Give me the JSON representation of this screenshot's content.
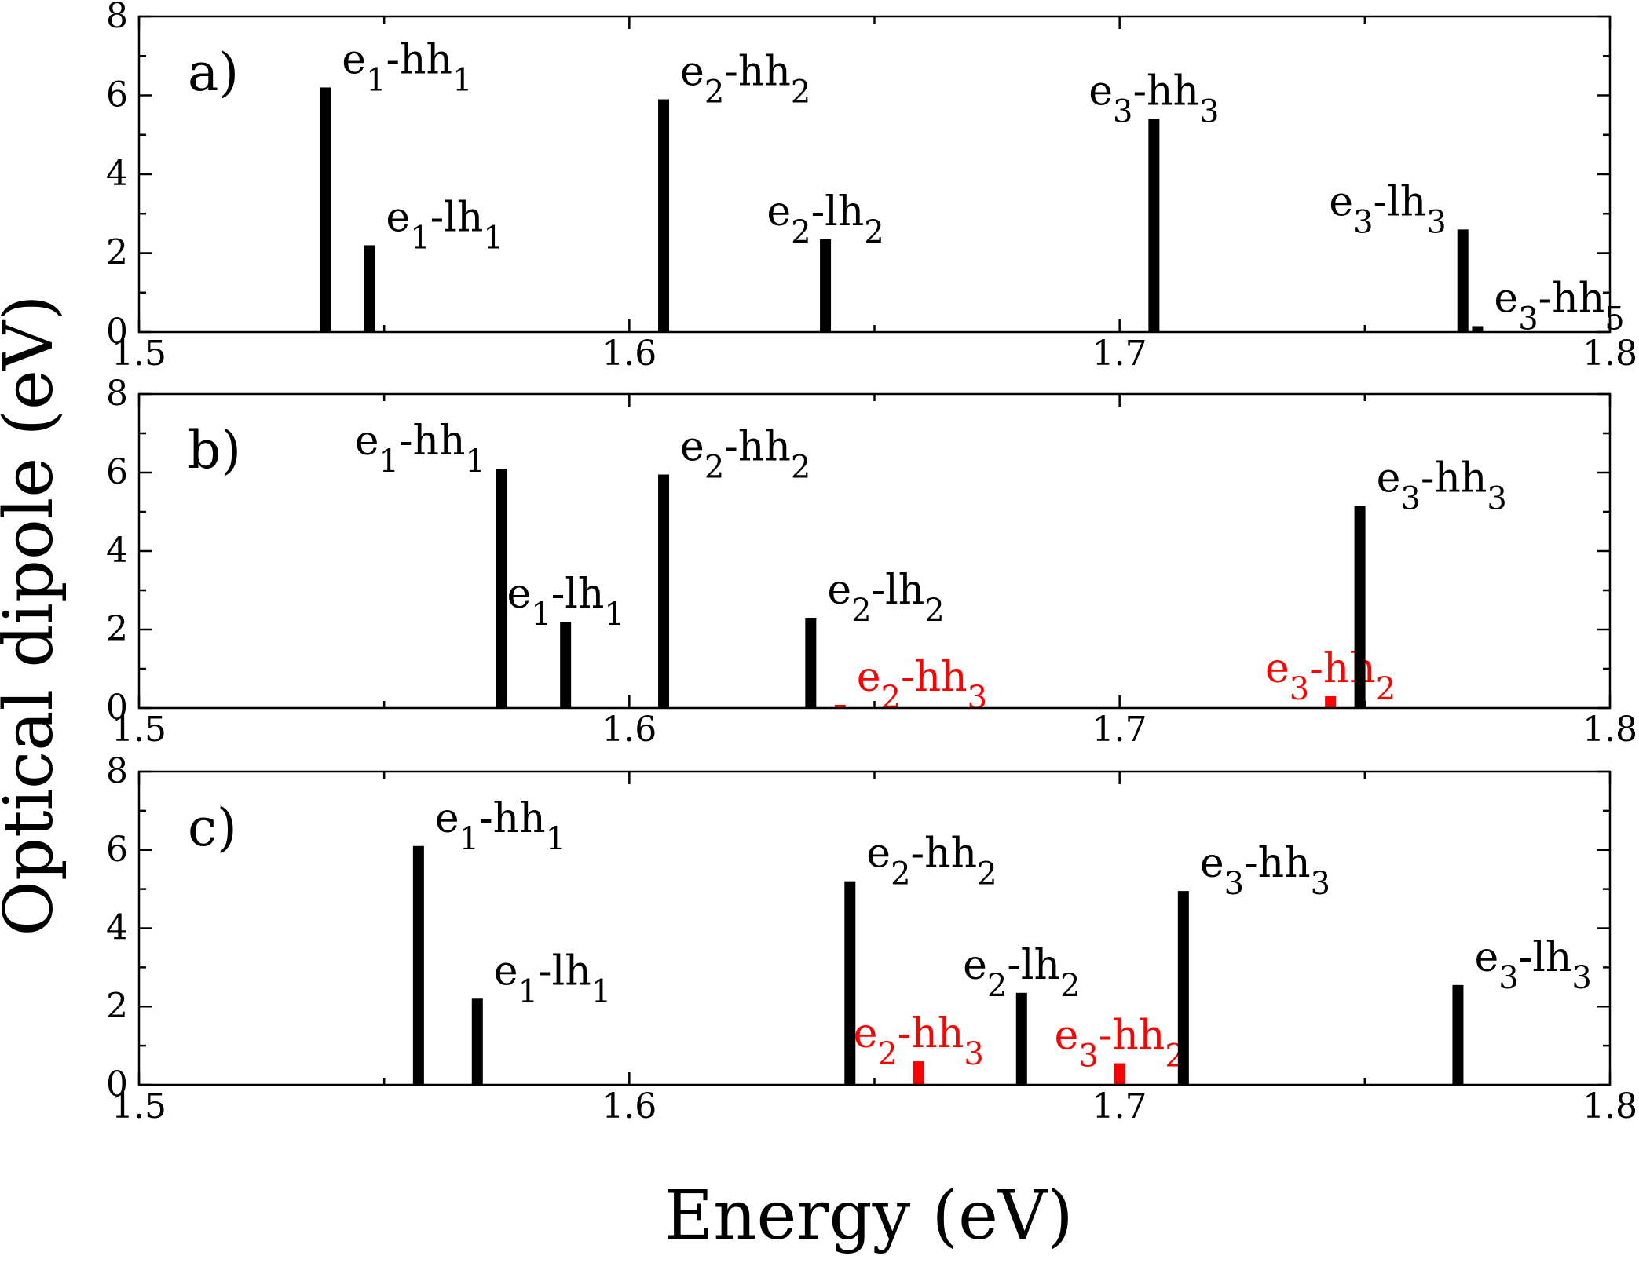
{
  "figure": {
    "ylabel": "Optical dipole (eV)",
    "xlabel": "Energy (eV)"
  },
  "chart_data": [
    {
      "type": "bar",
      "panel_label": "a)",
      "xlim": [
        1.5,
        1.8
      ],
      "ylim": [
        0,
        8
      ],
      "xticks": [
        "1.5",
        "1.6",
        "1.7",
        "1.8"
      ],
      "yticks": [
        "0",
        "2",
        "4",
        "6",
        "8"
      ],
      "series": [
        {
          "x": 1.538,
          "value": 6.2,
          "color": "#000000",
          "label": {
            "base1": "e",
            "sub1": "1",
            "base2": "-hh",
            "sub2": "1"
          },
          "anchor": "right"
        },
        {
          "x": 1.547,
          "value": 2.2,
          "color": "#000000",
          "label": {
            "base1": "e",
            "sub1": "1",
            "base2": "-lh",
            "sub2": "1"
          },
          "anchor": "right"
        },
        {
          "x": 1.607,
          "value": 5.9,
          "color": "#000000",
          "label": {
            "base1": "e",
            "sub1": "2",
            "base2": "-hh",
            "sub2": "2"
          },
          "anchor": "right"
        },
        {
          "x": 1.64,
          "value": 2.35,
          "color": "#000000",
          "label": {
            "base1": "e",
            "sub1": "2",
            "base2": "-lh",
            "sub2": "2"
          },
          "anchor": "center"
        },
        {
          "x": 1.707,
          "value": 5.4,
          "color": "#000000",
          "label": {
            "base1": "e",
            "sub1": "3",
            "base2": "-hh",
            "sub2": "3"
          },
          "anchor": "center"
        },
        {
          "x": 1.77,
          "value": 2.6,
          "color": "#000000",
          "label": {
            "base1": "e",
            "sub1": "3",
            "base2": "-lh",
            "sub2": "3"
          },
          "anchor": "left"
        },
        {
          "x": 1.773,
          "value": 0.15,
          "color": "#000000",
          "label": {
            "base1": "e",
            "sub1": "3",
            "base2": "-hh",
            "sub2": "5"
          },
          "anchor": "right"
        }
      ]
    },
    {
      "type": "bar",
      "panel_label": "b)",
      "xlim": [
        1.5,
        1.8
      ],
      "ylim": [
        0,
        8
      ],
      "xticks": [
        "1.5",
        "1.6",
        "1.7",
        "1.8"
      ],
      "yticks": [
        "0",
        "2",
        "4",
        "6",
        "8"
      ],
      "series": [
        {
          "x": 1.574,
          "value": 6.1,
          "color": "#000000",
          "label": {
            "base1": "e",
            "sub1": "1",
            "base2": "-hh",
            "sub2": "1"
          },
          "anchor": "left"
        },
        {
          "x": 1.587,
          "value": 2.2,
          "color": "#000000",
          "label": {
            "base1": "e",
            "sub1": "1",
            "base2": "-lh",
            "sub2": "1"
          },
          "anchor": "center"
        },
        {
          "x": 1.607,
          "value": 5.95,
          "color": "#000000",
          "label": {
            "base1": "e",
            "sub1": "2",
            "base2": "-hh",
            "sub2": "2"
          },
          "anchor": "right"
        },
        {
          "x": 1.637,
          "value": 2.3,
          "color": "#000000",
          "label": {
            "base1": "e",
            "sub1": "2",
            "base2": "-lh",
            "sub2": "2"
          },
          "anchor": "right"
        },
        {
          "x": 1.643,
          "value": 0.08,
          "color": "#ff0000",
          "label": {
            "base1": "e",
            "sub1": "2",
            "base2": "-hh",
            "sub2": "3"
          },
          "anchor": "right"
        },
        {
          "x": 1.743,
          "value": 0.3,
          "color": "#ff0000",
          "label": {
            "base1": "e",
            "sub1": "3",
            "base2": "-hh",
            "sub2": "2"
          },
          "anchor": "center"
        },
        {
          "x": 1.749,
          "value": 5.15,
          "color": "#000000",
          "label": {
            "base1": "e",
            "sub1": "3",
            "base2": "-hh",
            "sub2": "3"
          },
          "anchor": "right"
        }
      ]
    },
    {
      "type": "bar",
      "panel_label": "c)",
      "xlim": [
        1.5,
        1.8
      ],
      "ylim": [
        0,
        8
      ],
      "xticks": [
        "1.5",
        "1.6",
        "1.7",
        "1.8"
      ],
      "yticks": [
        "0",
        "2",
        "4",
        "6",
        "8"
      ],
      "series": [
        {
          "x": 1.557,
          "value": 6.1,
          "color": "#000000",
          "label": {
            "base1": "e",
            "sub1": "1",
            "base2": "-hh",
            "sub2": "1"
          },
          "anchor": "right"
        },
        {
          "x": 1.569,
          "value": 2.2,
          "color": "#000000",
          "label": {
            "base1": "e",
            "sub1": "1",
            "base2": "-lh",
            "sub2": "1"
          },
          "anchor": "right"
        },
        {
          "x": 1.645,
          "value": 5.2,
          "color": "#000000",
          "label": {
            "base1": "e",
            "sub1": "2",
            "base2": "-hh",
            "sub2": "2"
          },
          "anchor": "right"
        },
        {
          "x": 1.659,
          "value": 0.6,
          "color": "#ff0000",
          "label": {
            "base1": "e",
            "sub1": "2",
            "base2": "-hh",
            "sub2": "3"
          },
          "anchor": "center"
        },
        {
          "x": 1.68,
          "value": 2.35,
          "color": "#000000",
          "label": {
            "base1": "e",
            "sub1": "2",
            "base2": "-lh",
            "sub2": "2"
          },
          "anchor": "center"
        },
        {
          "x": 1.7,
          "value": 0.55,
          "color": "#ff0000",
          "label": {
            "base1": "e",
            "sub1": "3",
            "base2": "-hh",
            "sub2": "2"
          },
          "anchor": "center"
        },
        {
          "x": 1.713,
          "value": 4.95,
          "color": "#000000",
          "label": {
            "base1": "e",
            "sub1": "3",
            "base2": "-hh",
            "sub2": "3"
          },
          "anchor": "right"
        },
        {
          "x": 1.769,
          "value": 2.55,
          "color": "#000000",
          "label": {
            "base1": "e",
            "sub1": "3",
            "base2": "-lh",
            "sub2": "3"
          },
          "anchor": "right"
        }
      ]
    }
  ]
}
